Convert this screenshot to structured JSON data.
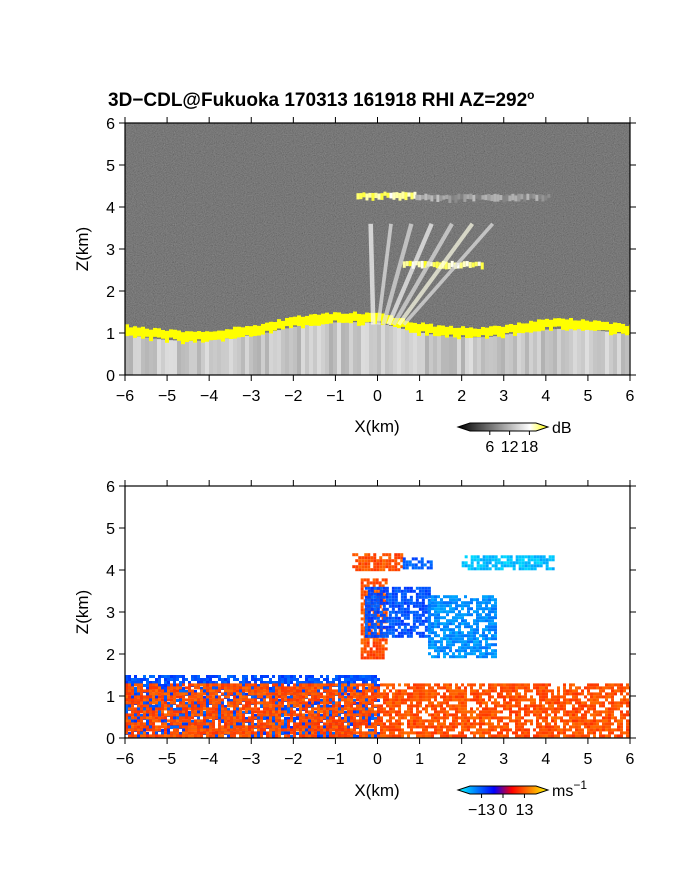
{
  "title": "3D−CDL@Fukuoka 170313 161918 RHI AZ=292",
  "title_sup": "o",
  "chart_data": [
    {
      "type": "heatmap",
      "quantity": "backscatter",
      "xlabel": "X(km)",
      "ylabel": "Z(km)",
      "xlim": [
        -6,
        6
      ],
      "ylim": [
        0,
        6
      ],
      "xticks": [
        -6,
        -5,
        -4,
        -3,
        -2,
        -1,
        0,
        1,
        2,
        3,
        4,
        5,
        6
      ],
      "yticks": [
        0,
        1,
        2,
        3,
        4,
        5,
        6
      ],
      "xtick_labels": [
        "−6",
        "−5",
        "−4",
        "−3",
        "−2",
        "−1",
        "0",
        "1",
        "2",
        "3",
        "4",
        "5",
        "6"
      ],
      "ytick_labels": [
        "0",
        "1",
        "2",
        "3",
        "4",
        "5",
        "6"
      ],
      "colorbar": {
        "unit": "dB",
        "unit_sup": "",
        "ticks": [
          6,
          12,
          18
        ],
        "tick_labels": [
          "6",
          "12",
          "18"
        ],
        "range": [
          0,
          20
        ],
        "colors": [
          "#000000",
          "#404040",
          "#808080",
          "#c0c0c0",
          "#ffffff",
          "#ffff00"
        ]
      },
      "features": [
        {
          "kind": "boundary-layer-top",
          "x_from": -6,
          "x_to": 6,
          "z_km": 1.1,
          "value_db": 20
        },
        {
          "kind": "cloud-layer",
          "x_from": -0.5,
          "x_to": 0.9,
          "z_km": 4.25,
          "value_db": 20
        },
        {
          "kind": "cloud-layer",
          "x_from": 0.9,
          "x_to": 4.1,
          "z_km": 4.2,
          "value_db": 12
        },
        {
          "kind": "cloud-layer",
          "x_from": 0.6,
          "x_to": 2.5,
          "z_km": 2.6,
          "value_db": 20
        },
        {
          "kind": "fall-streak",
          "x_from": -0.4,
          "x_to": 2.5,
          "z_from": 1.2,
          "z_to": 3.6,
          "value_db": 14
        }
      ]
    },
    {
      "type": "heatmap",
      "quantity": "doppler-velocity",
      "xlabel": "X(km)",
      "ylabel": "Z(km)",
      "xlim": [
        -6,
        6
      ],
      "ylim": [
        0,
        6
      ],
      "xticks": [
        -6,
        -5,
        -4,
        -3,
        -2,
        -1,
        0,
        1,
        2,
        3,
        4,
        5,
        6
      ],
      "yticks": [
        0,
        1,
        2,
        3,
        4,
        5,
        6
      ],
      "xtick_labels": [
        "−6",
        "−5",
        "−4",
        "−3",
        "−2",
        "−1",
        "0",
        "1",
        "2",
        "3",
        "4",
        "5",
        "6"
      ],
      "ytick_labels": [
        "0",
        "1",
        "2",
        "3",
        "4",
        "5",
        "6"
      ],
      "colorbar": {
        "unit": "ms",
        "unit_sup": "−1",
        "ticks": [
          -13,
          0,
          13
        ],
        "tick_labels": [
          "−13",
          "0",
          "13"
        ],
        "range": [
          -20,
          20
        ],
        "colors": [
          "#00ffff",
          "#0080ff",
          "#0000ff",
          "#ff0000",
          "#ff8000",
          "#ffff00"
        ]
      },
      "features": [
        {
          "kind": "layer",
          "x_from": -6,
          "x_to": 0,
          "z_from": 0,
          "z_to": 1.5,
          "velocity": -9
        },
        {
          "kind": "layer",
          "x_from": -6,
          "x_to": 6,
          "z_from": 0,
          "z_to": 1.3,
          "velocity": 9
        },
        {
          "kind": "layer",
          "x_from": -0.6,
          "x_to": 0.6,
          "z_from": 4.0,
          "z_to": 4.4,
          "velocity": 9
        },
        {
          "kind": "layer",
          "x_from": 0.6,
          "x_to": 1.3,
          "z_from": 4.05,
          "z_to": 4.3,
          "velocity": -10
        },
        {
          "kind": "layer",
          "x_from": 2.0,
          "x_to": 4.2,
          "z_from": 4.05,
          "z_to": 4.35,
          "velocity": -16
        },
        {
          "kind": "fall-streak",
          "x_from": -0.4,
          "x_to": 0.2,
          "z_from": 1.9,
          "z_to": 3.8,
          "velocity": 9
        },
        {
          "kind": "fall-streak",
          "x_from": -0.3,
          "x_to": 1.2,
          "z_from": 2.4,
          "z_to": 3.6,
          "velocity": -9
        },
        {
          "kind": "fall-streak",
          "x_from": 1.2,
          "x_to": 2.8,
          "z_from": 1.9,
          "z_to": 3.4,
          "velocity": -13
        }
      ]
    }
  ]
}
